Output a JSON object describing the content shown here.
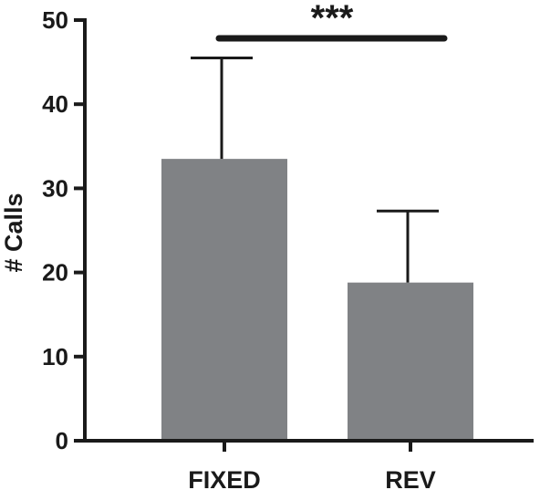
{
  "chart_data": {
    "type": "bar",
    "title": "",
    "xlabel": "",
    "ylabel": "# Calls",
    "ylim": [
      0,
      50
    ],
    "yticks": [
      0,
      10,
      20,
      30,
      40,
      50
    ],
    "grid": false,
    "categories": [
      "FIXED",
      "REV"
    ],
    "values": [
      33.5,
      18.8
    ],
    "error_upper": [
      45.5,
      27.3
    ],
    "colors": {
      "bar": "#808285",
      "axis": "#1a1a1a"
    },
    "annotations": [
      {
        "text": "***",
        "type": "significance-bracket",
        "between": [
          "FIXED",
          "REV"
        ]
      }
    ]
  }
}
